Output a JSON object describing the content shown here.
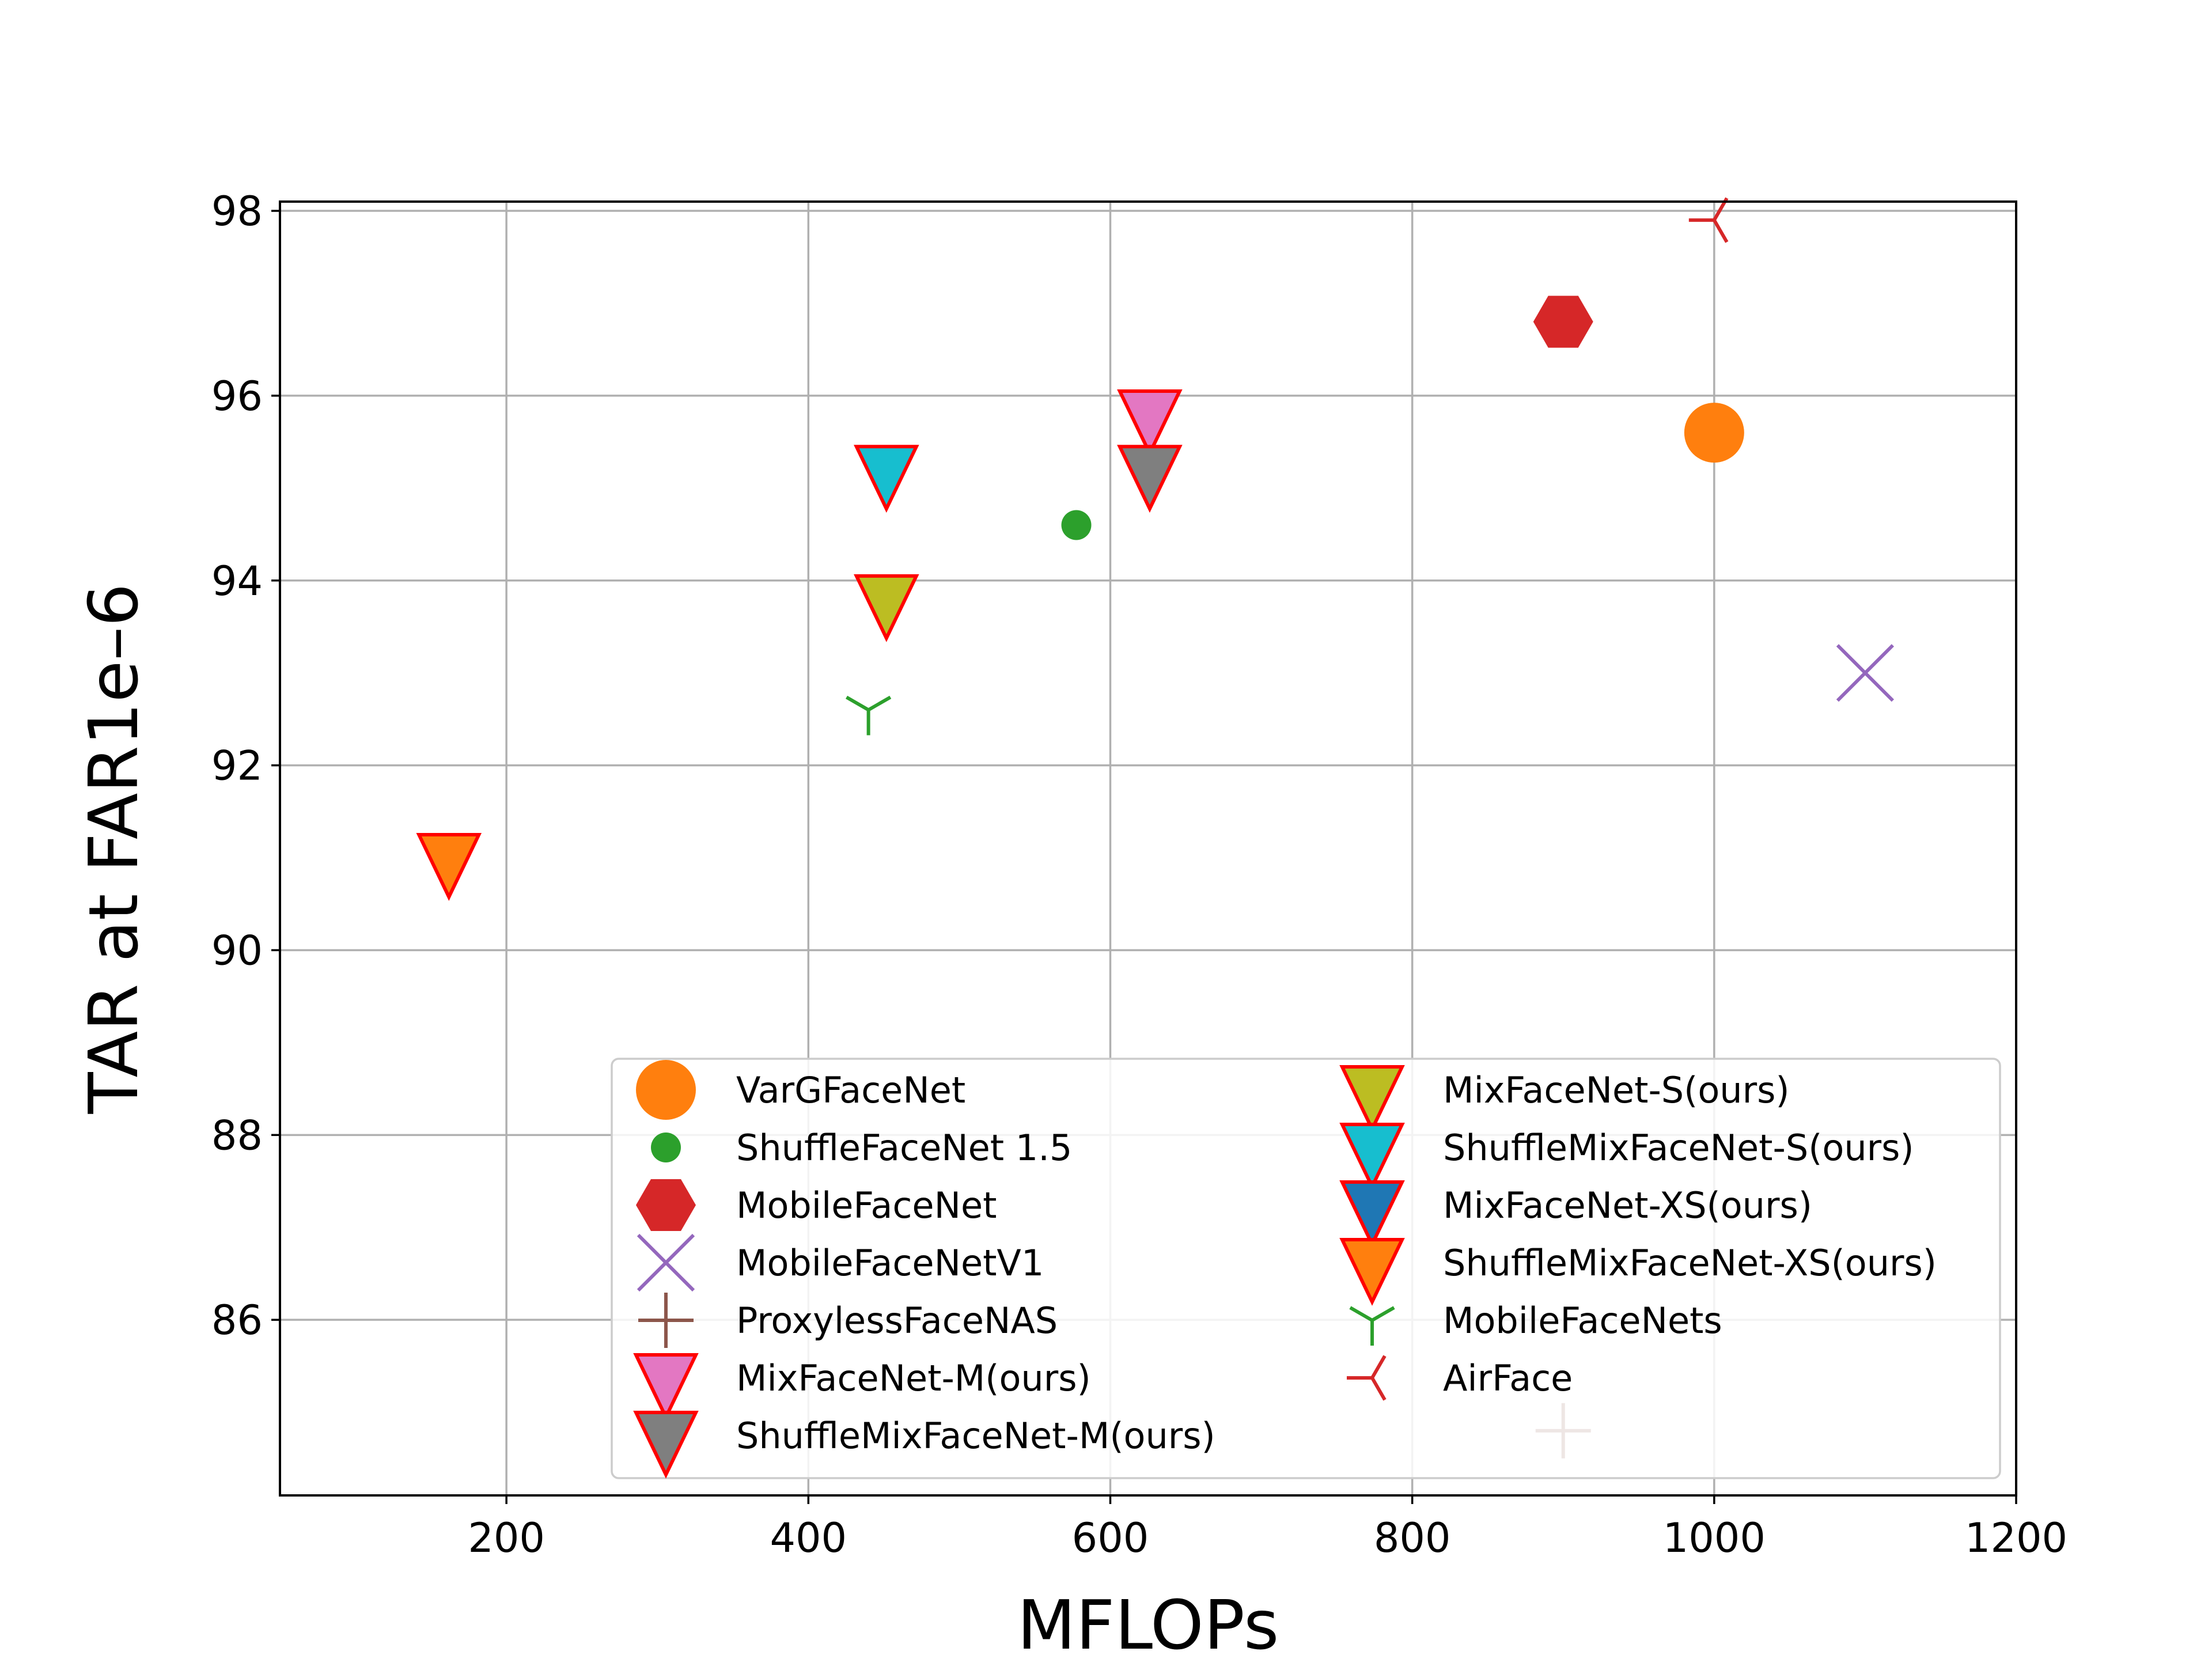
{
  "chart_data": {
    "type": "scatter",
    "xlabel": "MFLOPs",
    "ylabel": "TAR at FAR1e–6",
    "xlim": [
      50,
      1200
    ],
    "ylim": [
      84.1,
      98.1
    ],
    "xticks": [
      200,
      400,
      600,
      800,
      1000,
      1200
    ],
    "yticks": [
      86,
      88,
      90,
      92,
      94,
      96,
      98
    ],
    "xtick_labels": [
      "200",
      "400",
      "600",
      "800",
      "1000",
      "1200"
    ],
    "ytick_labels": [
      "86",
      "88",
      "90",
      "92",
      "94",
      "96",
      "98"
    ],
    "grid": true,
    "legend_position": "lower-right",
    "legend_columns": 2,
    "series": [
      {
        "name": "VarGFaceNet",
        "marker": "circle-large",
        "color": "#ff7f0e",
        "x": 1000,
        "y": 95.6
      },
      {
        "name": "ShuffleFaceNet 1.5",
        "marker": "circle-small",
        "color": "#2ca02c",
        "x": 577.5,
        "y": 94.6
      },
      {
        "name": "MobileFaceNet",
        "marker": "hexagon",
        "color": "#d62728",
        "x": 900,
        "y": 96.8
      },
      {
        "name": "MobileFaceNetV1",
        "marker": "x",
        "color": "#9467bd",
        "x": 1100,
        "y": 93.0
      },
      {
        "name": "ProxylessFaceNAS",
        "marker": "plus",
        "color": "#8c564b",
        "x": 900,
        "y": 84.8
      },
      {
        "name": "MixFaceNet-M(ours)",
        "marker": "triangle-down",
        "color": "#e377c2",
        "edge": "#ff0000",
        "x": 626.1,
        "y": 95.8
      },
      {
        "name": "ShuffleMixFaceNet-M(ours)",
        "marker": "triangle-down",
        "color": "#7f7f7f",
        "edge": "#ff0000",
        "x": 626.1,
        "y": 95.2
      },
      {
        "name": "MixFaceNet-S(ours)",
        "marker": "triangle-down",
        "color": "#bcbd22",
        "edge": "#ff0000",
        "x": 451.7,
        "y": 93.8
      },
      {
        "name": "ShuffleMixFaceNet-S(ours)",
        "marker": "triangle-down",
        "color": "#17becf",
        "edge": "#ff0000",
        "x": 451.7,
        "y": 95.2
      },
      {
        "name": "MixFaceNet-XS(ours)",
        "marker": "triangle-down",
        "color": "#1f77b4",
        "edge": "#ff0000",
        "x": null,
        "y": null
      },
      {
        "name": "ShuffleMixFaceNet-XS(ours)",
        "marker": "triangle-down",
        "color": "#ff7f0e",
        "edge": "#ff0000",
        "x": 161.9,
        "y": 91.0
      },
      {
        "name": "MobileFaceNets",
        "marker": "tri-down",
        "color": "#2ca02c",
        "x": 439.8,
        "y": 92.6
      },
      {
        "name": "AirFace",
        "marker": "tri-left",
        "color": "#d62728",
        "x": 1000,
        "y": 97.9
      }
    ]
  }
}
